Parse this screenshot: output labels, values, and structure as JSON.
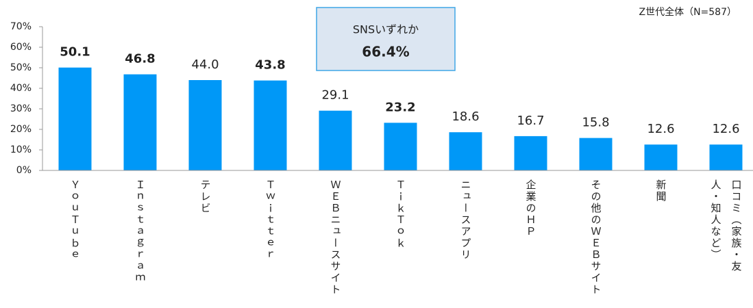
{
  "chart_data": {
    "type": "bar",
    "note": "Z世代全体（N=587）",
    "annotation": {
      "title": "SNSいずれか",
      "value": 66.4,
      "value_label": "66.4%",
      "color": "#e8177a"
    },
    "categories": [
      "ＹｏｕＴｕｂｅ",
      "Ｉｎｓｔａｇｒａｍ",
      "テレビ",
      "Ｔｗｉｔｔｅｒ",
      "ＷＥＢニュースサイト",
      "ＴｉｋＴｏｋ",
      "ニュースアプリ",
      "企業のＨＰ",
      "その他のＷＥＢサイト",
      "新聞",
      "口コミ（家族・友人・知人など）"
    ],
    "values": [
      50.1,
      46.8,
      44.0,
      43.8,
      29.1,
      23.2,
      18.6,
      16.7,
      15.8,
      12.6,
      12.6
    ],
    "value_labels": [
      "50.1",
      "46.8",
      "44.0",
      "43.8",
      "29.1",
      "23.2",
      "18.6",
      "16.7",
      "15.8",
      "12.6",
      "12.6"
    ],
    "value_label_colors": [
      "#e8177a",
      "#e8177a",
      "#222222",
      "#e8177a",
      "#222222",
      "#e8177a",
      "#222222",
      "#222222",
      "#222222",
      "#222222",
      "#222222"
    ],
    "color": "#0098f7",
    "ylim": [
      0,
      70
    ],
    "yticks": [
      {
        "value": 0,
        "label": "0%"
      },
      {
        "value": 10,
        "label": "10%"
      },
      {
        "value": 20,
        "label": "20%"
      },
      {
        "value": 30,
        "label": "30%"
      },
      {
        "value": 40,
        "label": "40%"
      },
      {
        "value": 50,
        "label": "50%"
      },
      {
        "value": 60,
        "label": "60%"
      },
      {
        "value": 70,
        "label": "70%"
      }
    ],
    "grid": false
  }
}
